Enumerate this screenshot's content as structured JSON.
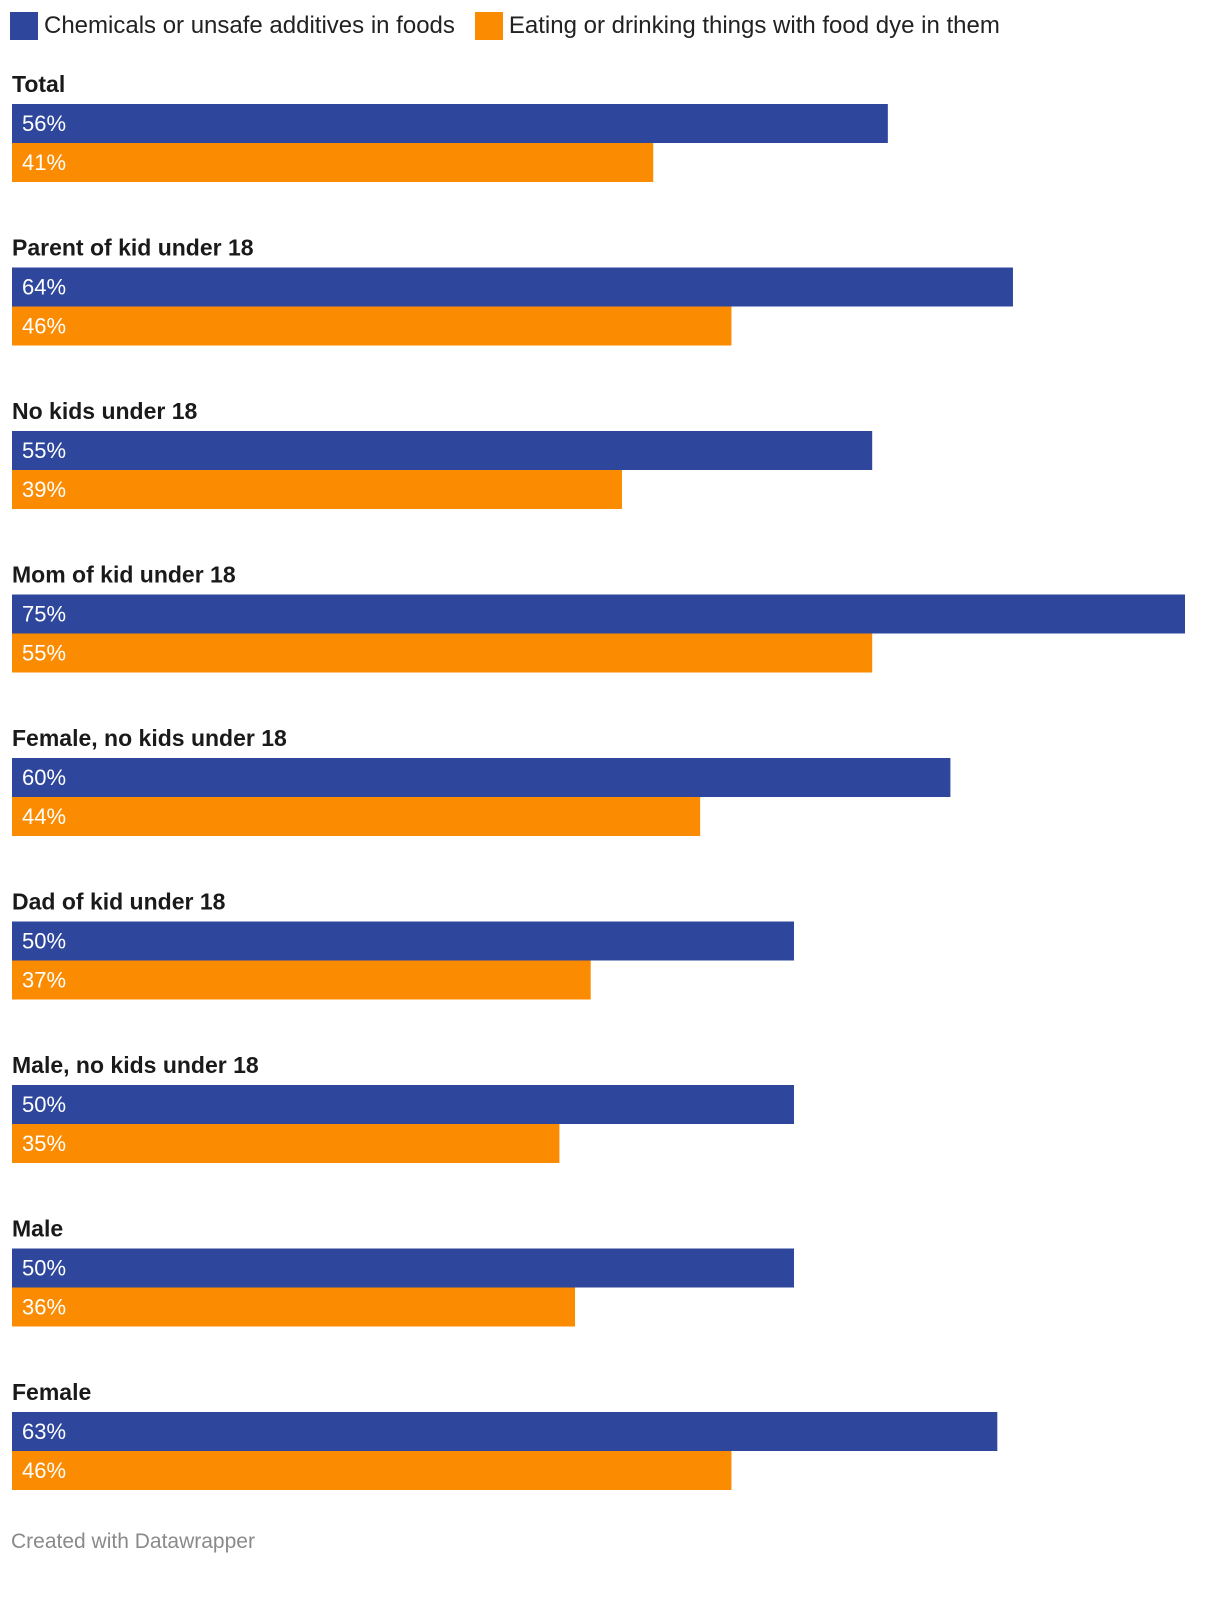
{
  "chart_data": {
    "type": "bar",
    "orientation": "horizontal",
    "xlim": [
      0,
      75
    ],
    "legend_position": "top-left",
    "categories": [
      "Total",
      "Parent of kid under 18",
      "No kids under 18",
      "Mom of kid under 18",
      "Female, no kids under 18",
      "Dad of kid under 18",
      "Male, no kids under 18",
      "Male",
      "Female"
    ],
    "series": [
      {
        "name": "Chemicals or unsafe additives in foods",
        "color": "#2e479c",
        "values": [
          56,
          64,
          55,
          75,
          60,
          50,
          50,
          50,
          63
        ]
      },
      {
        "name": "Eating or drinking things with food dye in them",
        "color": "#fb8b00",
        "values": [
          41,
          46,
          39,
          55,
          44,
          37,
          35,
          36,
          46
        ]
      }
    ],
    "value_suffix": "%"
  },
  "footer": "Created with Datawrapper"
}
